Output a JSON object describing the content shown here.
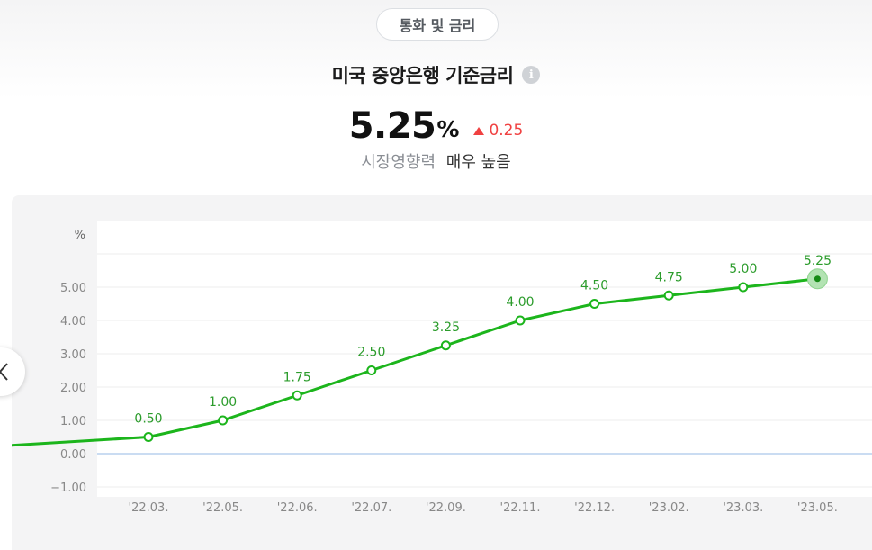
{
  "category": {
    "label": "통화 및 금리"
  },
  "header": {
    "title": "미국 중앙은행 기준금리",
    "info_icon": "info-icon",
    "value": "5.25",
    "unit": "%",
    "change": "0.25",
    "change_direction": "up",
    "influence_label": "시장영향력",
    "influence_value": "매우 높음"
  },
  "colors": {
    "line": "#1cb51c",
    "label": "#2c9c2c",
    "change_up": "#f04141",
    "zero_line": "#b9d1ee"
  },
  "navigation": {
    "prev_icon": "chevron-left-icon"
  },
  "chart_data": {
    "type": "line",
    "ylabel": "%",
    "ylim": [
      -1.0,
      6.5
    ],
    "yticks": [
      -1.0,
      0.0,
      1.0,
      2.0,
      3.0,
      4.0,
      5.0
    ],
    "ytick_labels": [
      "−1.00",
      "0.00",
      "1.00",
      "2.00",
      "3.00",
      "4.00",
      "5.00"
    ],
    "categories": [
      "'22.03.",
      "'22.05.",
      "'22.06.",
      "'22.07.",
      "'22.09.",
      "'22.11.",
      "'22.12.",
      "'23.02.",
      "'23.03.",
      "'23.05."
    ],
    "values": [
      0.5,
      1.0,
      1.75,
      2.5,
      3.25,
      4.0,
      4.5,
      4.75,
      5.0,
      5.25
    ],
    "data_labels": [
      "0.50",
      "1.00",
      "1.75",
      "2.50",
      "3.25",
      "4.00",
      "4.50",
      "4.75",
      "5.00",
      "5.25"
    ],
    "leading_value": 0.25,
    "highlighted_index": 9,
    "grid": true,
    "legend": "none"
  }
}
